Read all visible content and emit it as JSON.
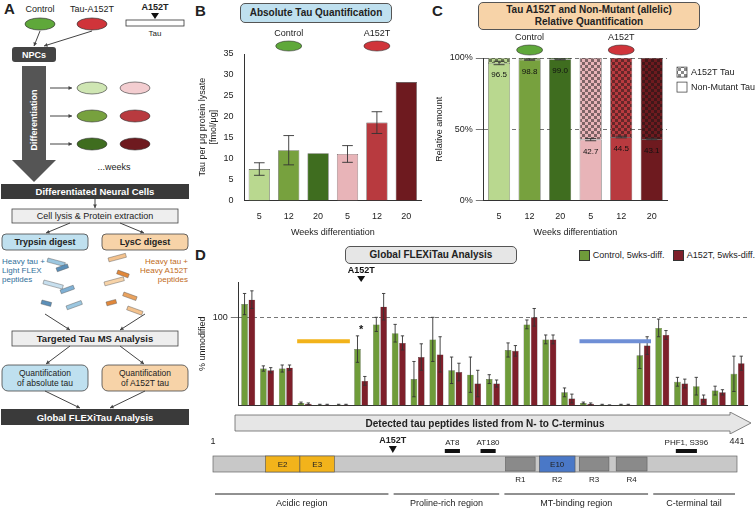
{
  "panel_a": {
    "label": "A",
    "cell_lines": [
      {
        "name": "Control",
        "color": "#5fa83a"
      },
      {
        "name": "Tau-A152T",
        "color": "#d0343a"
      }
    ],
    "mutation": "A152T",
    "protein": "Tau",
    "start": "NPCs",
    "step": "Differentiation",
    "duration": "...weeks",
    "cells": "Differentiated Neural Cells",
    "lysis": "Cell lysis & Protein extraction",
    "digest_left": "Trypsin digest",
    "digest_right": "LysC digest",
    "spike_left": [
      "Heavy tau +",
      "Light FLEX",
      "peptides"
    ],
    "spike_right": [
      "Heavy tau +",
      "Heavy A152T",
      "peptides"
    ],
    "analysis": "Targeted Tau MS Analysis",
    "quant_left": [
      "Quantification",
      "of absolute tau"
    ],
    "quant_right": [
      "Quantification",
      "of A152T tau"
    ],
    "global": "Global FLEXiTau Analysis"
  },
  "chart_data": [
    {
      "panel": "B",
      "type": "bar",
      "title": "Absolute Tau Quantification",
      "groups": [
        {
          "name": "Control",
          "color": "#5fa83a"
        },
        {
          "name": "A152T",
          "color": "#d0343a"
        }
      ],
      "categories": [
        "5",
        "12",
        "20",
        "5",
        "12",
        "20"
      ],
      "values": [
        7.5,
        12.0,
        11.3,
        11.1,
        18.6,
        28.3
      ],
      "errors": [
        1.5,
        3.5,
        0,
        2.0,
        2.6,
        0
      ],
      "colors": [
        "#b9d88f",
        "#77a13e",
        "#3f6d1f",
        "#e8b4b8",
        "#b83a3f",
        "#6e1a1f"
      ],
      "xlabel": "Weeks differentiation",
      "ylabel": [
        "Tau per μg protein lysate",
        "[fmol/μg]"
      ],
      "ylim": [
        0,
        35
      ],
      "yticks": [
        0,
        5,
        10,
        15,
        20,
        25,
        30,
        35
      ],
      "grid": false
    },
    {
      "panel": "C",
      "type": "bar",
      "title": [
        "Tau A152T and Non-Mutant (allelic)",
        "Relative Quantification"
      ],
      "groups": [
        {
          "name": "Control",
          "color": "#5fa83a"
        },
        {
          "name": "A152T",
          "color": "#d0343a"
        }
      ],
      "categories": [
        "5",
        "12",
        "20",
        "5",
        "12",
        "20"
      ],
      "stacked": true,
      "data_labels": true,
      "legend": "right",
      "series": [
        {
          "name": "Non-Mutant Tau",
          "colors": [
            "#b9d88f",
            "#77a13e",
            "#3f6d1f",
            "#e8b4b8",
            "#b83a3f",
            "#6e1a1f"
          ],
          "values": [
            96.5,
            98.8,
            99.0,
            42.7,
            44.5,
            43.1
          ],
          "value_labels": [
            "96.5",
            "98.8",
            "99.0",
            "42.7",
            "44.5",
            "43.1"
          ],
          "errors": [
            1.2,
            0.4,
            0.3,
            0.8,
            0.6,
            0.5
          ]
        },
        {
          "name": "A152T Tau",
          "colors": [
            "#b9d88f",
            "#77a13e",
            "#3f6d1f",
            "#e8b4b8",
            "#b83a3f",
            "#6e1a1f"
          ],
          "values": [
            3.5,
            1.2,
            1.0,
            57.3,
            55.5,
            56.9
          ],
          "marker": "checker"
        }
      ],
      "xlabel": "Weeks differentiation",
      "ylabel": "Relative amount",
      "ylim": [
        0,
        100
      ],
      "yticks": [
        {
          "value": 0,
          "label": "0%"
        },
        {
          "value": 50,
          "label": "50%"
        },
        {
          "value": 100,
          "label": "100%"
        }
      ],
      "grid": true,
      "line_style": "dashed"
    },
    {
      "panel": "D",
      "type": "bar",
      "title": "Global FLEXiTau Analysis",
      "categories": [
        null,
        null,
        null,
        null,
        null,
        null,
        null,
        null,
        null,
        null,
        null,
        null,
        null,
        null,
        null,
        null,
        null,
        null,
        null,
        null,
        null,
        null,
        null,
        null,
        null,
        null,
        null
      ],
      "series": [
        {
          "name": "Control, 5wks-diff.",
          "color": "#6f9c3a",
          "values": [
            115,
            42,
            42,
            3,
            1,
            1,
            64,
            92,
            82,
            30,
            75,
            40,
            35,
            30,
            63,
            92,
            75,
            15,
            3,
            1,
            1,
            57,
            88,
            27,
            22,
            17,
            36
          ],
          "errors": [
            12,
            3,
            4,
            1,
            0.5,
            0.5,
            15,
            8,
            10,
            20,
            25,
            15,
            20,
            5,
            8,
            5,
            5,
            5,
            1,
            0.5,
            0.5,
            15,
            10,
            5,
            10,
            5,
            20
          ]
        },
        {
          "name": "A152T, 5wks-diff.",
          "color": "#7e1f2a",
          "values": [
            120,
            40,
            43,
            2,
            1,
            1,
            28,
            112,
            71,
            55,
            58,
            38,
            25,
            25,
            62,
            100,
            75,
            8,
            2,
            0.5,
            1,
            68,
            80,
            25,
            8,
            15,
            48
          ],
          "errors": [
            10,
            3,
            3,
            1,
            0.5,
            0.5,
            5,
            15,
            8,
            15,
            20,
            10,
            15,
            4,
            6,
            10,
            5,
            5,
            1,
            0.3,
            0.5,
            10,
            5,
            5,
            4,
            3,
            8
          ]
        }
      ],
      "mutation_label": {
        "text": "A152T",
        "category": 6
      },
      "significance": [
        {
          "text": "*",
          "category": 6
        }
      ],
      "exon_spans": [
        {
          "start": 3,
          "end": 5,
          "color": "#f2b31b"
        },
        {
          "start": 18,
          "end": 21,
          "color": "#6f8fd6"
        }
      ],
      "xlabel": "Detected tau peptides listed from N- to C-terminus",
      "ylabel": "% unmodified",
      "ylim": [
        0,
        140
      ],
      "yticks": [
        100
      ],
      "grid": true,
      "line_style": "dashed",
      "legend": "top-right",
      "tick_labels": "y"
    }
  ],
  "tau_domain": {
    "start": 1,
    "end": 441,
    "mutation": {
      "label": "A152T",
      "position": 152
    },
    "exons": [
      {
        "label": "E2",
        "start": 45,
        "end": 74,
        "color": "#f2b31b"
      },
      {
        "label": "E3",
        "start": 74,
        "end": 103,
        "color": "#f2b31b"
      },
      {
        "label": "E10",
        "start": 275,
        "end": 305,
        "color": "#4a78c7"
      }
    ],
    "repeats": [
      {
        "label": "R1",
        "start": 244,
        "end": 274
      },
      {
        "label": "R2",
        "start": 275,
        "end": 305
      },
      {
        "label": "R3",
        "start": 306,
        "end": 336
      },
      {
        "label": "R4",
        "start": 337,
        "end": 368
      }
    ],
    "epitopes": [
      {
        "label": "AT8",
        "start": 199,
        "end": 205
      },
      {
        "label": "AT180",
        "start": 229,
        "end": 235
      },
      {
        "label": "PHF1, S396",
        "start": 393,
        "end": 404
      }
    ],
    "regions": [
      {
        "label": "Acidic region",
        "start": 1,
        "end": 150
      },
      {
        "label": "Proline-rich region",
        "start": 151,
        "end": 243
      },
      {
        "label": "MT-binding region",
        "start": 244,
        "end": 368
      },
      {
        "label": "C-terminal tail",
        "start": 369,
        "end": 441
      }
    ]
  }
}
